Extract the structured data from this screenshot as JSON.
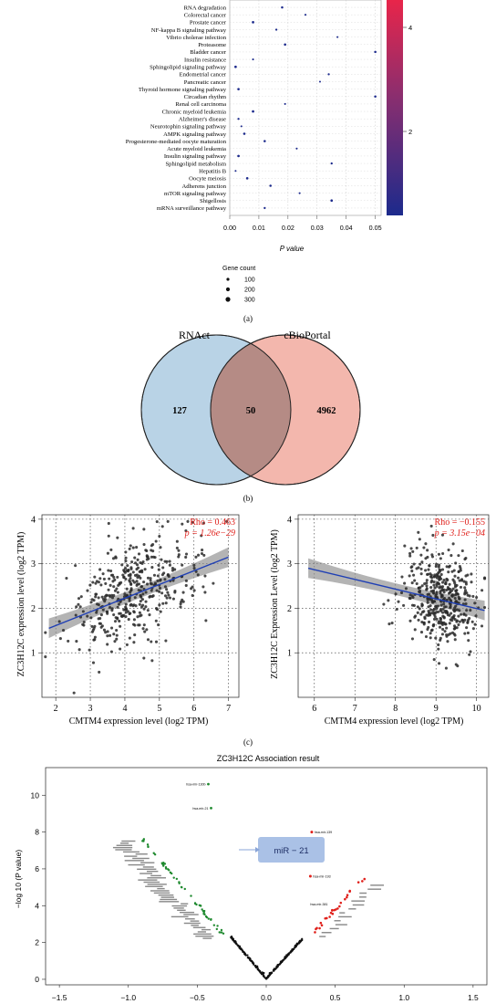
{
  "panel_labels": {
    "a": "(a)",
    "b": "(b)",
    "c": "(c)"
  },
  "chart_data": [
    {
      "type": "scatter",
      "panel": "a",
      "xlabel": "P value",
      "ylabel": "",
      "xlim": [
        0,
        0.052
      ],
      "xticks": [
        "0.00",
        "0.01",
        "0.02",
        "0.03",
        "0.04",
        "0.05"
      ],
      "categories": [
        "RNA degradation",
        "Colorectal cancer",
        "Prostate cancer",
        "NF-kappa B signaling pathway",
        "Vibrio cholerae infection",
        "Proteasome",
        "Bladder cancer",
        "Insulin resistance",
        "Sphingolipid signaling pathway",
        "Endometrial cancer",
        "Pancreatic cancer",
        "Thyroid hormone signaling pathway",
        "Circadian rhythm",
        "Renal cell carcinoma",
        "Chronic myeloid leukemia",
        "Alzheimer's disease",
        "Neurotophin signaling pathway",
        "AMPK signaling pathway",
        "Progesterone-mediated oocyte maturation",
        "Acute myeloid leukemia",
        "Insulin signaling pathway",
        "Sphingolipid metabolism",
        "Hepatitis B",
        "Oocyte meiosis",
        "Adherens junction",
        "mTOR signaling pathway",
        "Shigellosis",
        "mRNA surveillance pathway"
      ],
      "values": [
        0.018,
        0.026,
        0.008,
        0.016,
        0.037,
        0.019,
        0.05,
        0.008,
        0.002,
        0.034,
        0.031,
        0.003,
        0.05,
        0.019,
        0.008,
        0.003,
        0.004,
        0.005,
        0.012,
        0.023,
        0.003,
        0.035,
        0.002,
        0.006,
        0.014,
        0.024,
        0.035,
        0.012
      ],
      "colorbar_ticks": [
        "4",
        "2"
      ],
      "legend": {
        "title": "Gene count",
        "sizes": [
          "100",
          "200",
          "300"
        ]
      }
    },
    {
      "type": "venn",
      "panel": "b",
      "sets": [
        {
          "name": "RNAct",
          "only": "127",
          "color": "#b9d3e6"
        },
        {
          "name": "cBioPortal",
          "only": "4962",
          "color": "#f3b7ad"
        }
      ],
      "overlap": "50",
      "overlap_color": "#b58b85"
    },
    {
      "type": "scatter",
      "panel": "c-left",
      "xlabel": "CMTM4 expression level (log2 TPM)",
      "ylabel": "ZC3H12C expression level (log2 TPM)",
      "xlim": [
        1.6,
        7.3
      ],
      "ylim": [
        0,
        4.1
      ],
      "xticks": [
        2,
        3,
        4,
        5,
        6,
        7
      ],
      "yticks": [
        1,
        2,
        3,
        4
      ],
      "annotation": [
        "Rho = 0.463",
        "p = 1.26e−29"
      ],
      "fit": {
        "x0": 1.8,
        "y0": 1.55,
        "x1": 7.0,
        "y1": 3.15
      },
      "points": {
        "count": 420,
        "x_mean": 4.3,
        "x_sd": 0.95,
        "intercept": 1.0,
        "slope": 0.31,
        "noise_sd": 0.6
      }
    },
    {
      "type": "scatter",
      "panel": "c-right",
      "xlabel": "CMTM4 expression level (log2 TPM)",
      "ylabel": "ZC3H12C Expression Level (log2 TPM)",
      "xlim": [
        5.6,
        10.3
      ],
      "ylim": [
        0,
        4.1
      ],
      "xticks": [
        6,
        7,
        8,
        9,
        10
      ],
      "yticks": [
        1,
        2,
        3,
        4
      ],
      "annotation": [
        "Rho = −0.155",
        "p = 3.15e−04"
      ],
      "fit": {
        "x0": 5.85,
        "y0": 2.9,
        "x1": 10.2,
        "y1": 1.95
      },
      "points": {
        "count": 440,
        "x_mean": 9.15,
        "x_sd": 0.45,
        "intercept": 4.2,
        "slope": -0.22,
        "noise_sd": 0.55
      }
    },
    {
      "type": "scatter",
      "panel": "d",
      "title": "ZC3H12C Association result",
      "ylabel": "−log 10 (P value)",
      "xlim": [
        -1.6,
        1.6
      ],
      "ylim": [
        -0.3,
        11.5
      ],
      "xticks": [
        "−1.5",
        "−1.0",
        "−0.5",
        "0.0",
        "0.5",
        "1.0",
        "1.5"
      ],
      "yticks": [
        0,
        2,
        4,
        6,
        8,
        10
      ],
      "callout": "miR − 21",
      "top_labels": [
        {
          "text": "hsa-mir-130b",
          "x": -0.42,
          "y": 10.6
        },
        {
          "text": "hsa-mir-21",
          "x": -0.4,
          "y": 9.3
        },
        {
          "text": "hsa-mir-139",
          "x": 0.33,
          "y": 8.0
        },
        {
          "text": "hsa-mir-193",
          "x": 0.32,
          "y": 5.6
        },
        {
          "text": "hsa-mir-381",
          "x": 0.3,
          "y": 4.1
        }
      ]
    }
  ]
}
